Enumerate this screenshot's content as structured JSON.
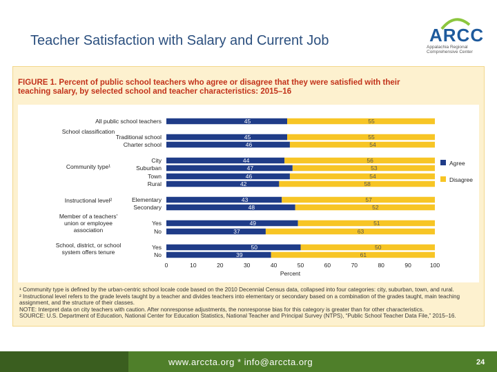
{
  "slide": {
    "title": "Teacher Satisfaction with Salary and Current Job",
    "logo_text": "ARCC",
    "logo_subtitle": "Appalachia Regional Comprehensive Center",
    "footer_text": "www.arccta.org  *  info@arccta.org",
    "page_number": "24"
  },
  "figure": {
    "title_line1": "FIGURE 1. Percent of public school teachers who agree or disagree that they were satisfied with their",
    "title_line2": "teaching salary, by selected school and teacher characteristics: 2015–16",
    "notes": [
      "¹ Community type is defined by the urban-centric school locale code based on the 2010 Decennial Census data, collapsed into four categories: city, suburban, town, and rural.",
      "² Instructional level  refers to the grade levels taught by a teacher and  divides teachers into elementary or secondary based on a combination of the grades taught, main teaching",
      "assignment, and the structure of their classes.",
      "NOTE: Interpret data on city teachers with caution. After nonresponse adjustments, the nonresponse bias for this category is greater than for other characteristics.",
      "SOURCE: U.S. Department of Education, National Center for Education Statistics, National Teacher and Principal Survey (NTPS), “Public School Teacher Data File,” 2015–16."
    ]
  },
  "colors": {
    "agree": "#1f3c88",
    "disagree": "#f7c525",
    "title_blue": "#2b4f7e",
    "figure_title": "#c2321a",
    "footer_green": "#4f7f2a"
  },
  "chart_data": {
    "type": "bar",
    "orientation": "horizontal",
    "stacked": true,
    "xlabel": "Percent",
    "xlim": [
      0,
      100
    ],
    "xticks": [
      0,
      10,
      20,
      30,
      40,
      50,
      60,
      70,
      80,
      90,
      100
    ],
    "legend_position": "right",
    "series_names": [
      "Agree",
      "Disagree"
    ],
    "groups": [
      {
        "label": "",
        "categories": [
          "All public school teachers"
        ]
      },
      {
        "label": "School classification",
        "categories": [
          "Traditional school",
          "Charter school"
        ]
      },
      {
        "label": "Community type¹",
        "categories": [
          "City",
          "Suburban",
          "Town",
          "Rural"
        ]
      },
      {
        "label": "Instructional level²",
        "categories": [
          "Elementary",
          "Secondary"
        ]
      },
      {
        "label": "Member of a teachers' union or employee association",
        "label_lines": [
          "Member of a teachers'",
          "union or employee",
          "association"
        ],
        "categories": [
          "Yes",
          "No"
        ]
      },
      {
        "label": "School, district, or school system offers tenure",
        "label_lines": [
          "School, district, or school",
          "system offers tenure"
        ],
        "categories": [
          "Yes",
          "No"
        ]
      }
    ],
    "categories": [
      "All public school teachers",
      "Traditional school",
      "Charter school",
      "City",
      "Suburban",
      "Town",
      "Rural",
      "Elementary",
      "Secondary",
      "Yes",
      "No",
      "Yes",
      "No"
    ],
    "series": [
      {
        "name": "Agree",
        "values": [
          45,
          45,
          46,
          44,
          47,
          46,
          42,
          43,
          48,
          49,
          37,
          50,
          39
        ]
      },
      {
        "name": "Disagree",
        "values": [
          55,
          55,
          54,
          56,
          53,
          54,
          58,
          57,
          52,
          51,
          63,
          50,
          61
        ]
      }
    ]
  }
}
